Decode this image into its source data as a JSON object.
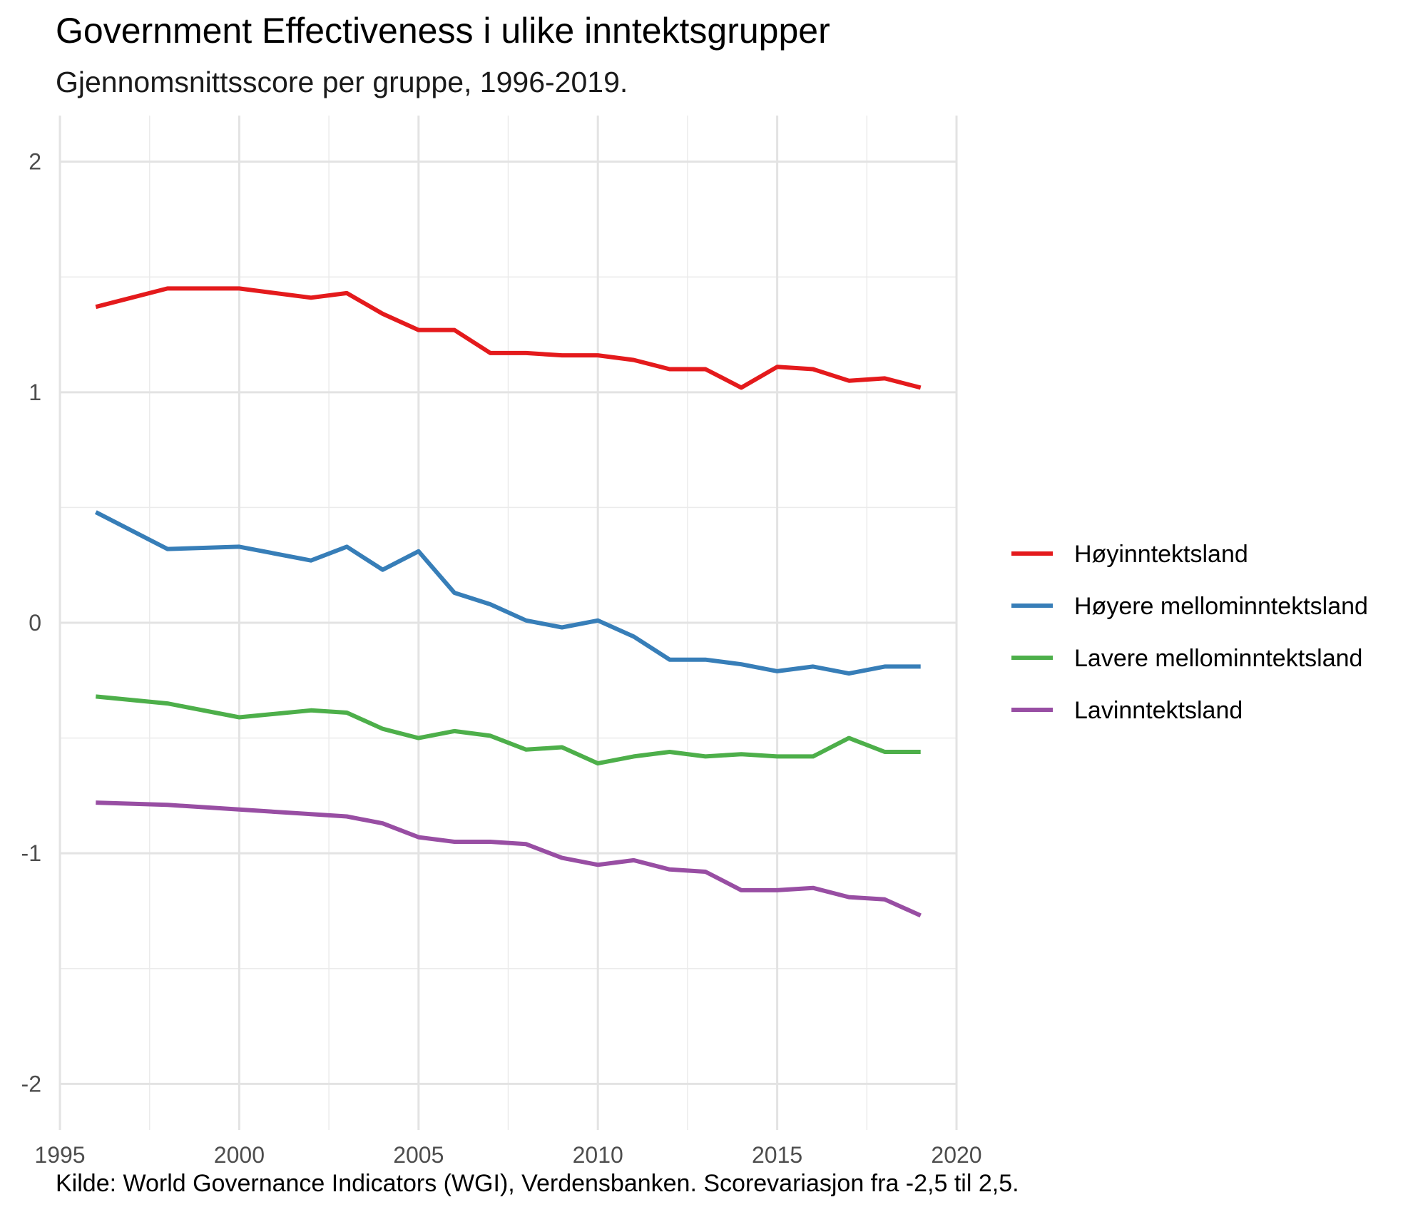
{
  "chart_data": {
    "type": "line",
    "title": "Government Effectiveness i ulike inntektsgrupper",
    "subtitle": "Gjennomsnittsscore per gruppe, 1996-2019.",
    "caption": "Kilde: World Governance Indicators (WGI), Verdensbanken. Scorevariasjon fra -2,5 til 2,5.",
    "xlabel": "",
    "ylabel": "",
    "xlim": [
      1995,
      2020
    ],
    "ylim": [
      -2.2,
      2.2
    ],
    "x_ticks": [
      1995,
      2000,
      2005,
      2010,
      2015,
      2020
    ],
    "y_ticks": [
      -2,
      -1,
      0,
      1,
      2
    ],
    "grid": true,
    "legend_position": "right",
    "x": [
      1996,
      1998,
      2000,
      2002,
      2003,
      2004,
      2005,
      2006,
      2007,
      2008,
      2009,
      2010,
      2011,
      2012,
      2013,
      2014,
      2015,
      2016,
      2017,
      2018,
      2019
    ],
    "series": [
      {
        "name": "Høyinntektsland",
        "color": "#e41a1c",
        "values": [
          1.37,
          1.45,
          1.45,
          1.41,
          1.43,
          1.34,
          1.27,
          1.27,
          1.17,
          1.17,
          1.16,
          1.16,
          1.14,
          1.1,
          1.1,
          1.02,
          1.11,
          1.1,
          1.05,
          1.06,
          1.02
        ]
      },
      {
        "name": "Høyere mellominntektsland",
        "color": "#377eb8",
        "values": [
          0.48,
          0.32,
          0.33,
          0.27,
          0.33,
          0.23,
          0.31,
          0.13,
          0.08,
          0.01,
          -0.02,
          0.01,
          -0.06,
          -0.16,
          -0.16,
          -0.18,
          -0.21,
          -0.19,
          -0.22,
          -0.19,
          -0.19
        ]
      },
      {
        "name": "Lavere mellominntektsland",
        "color": "#4daf4a",
        "values": [
          -0.32,
          -0.35,
          -0.41,
          -0.38,
          -0.39,
          -0.46,
          -0.5,
          -0.47,
          -0.49,
          -0.55,
          -0.54,
          -0.61,
          -0.58,
          -0.56,
          -0.58,
          -0.57,
          -0.58,
          -0.58,
          -0.5,
          -0.56,
          -0.56
        ]
      },
      {
        "name": "Lavinntektsland",
        "color": "#984ea3",
        "values": [
          -0.78,
          -0.79,
          -0.81,
          -0.83,
          -0.84,
          -0.87,
          -0.93,
          -0.95,
          -0.95,
          -0.96,
          -1.02,
          -1.05,
          -1.03,
          -1.07,
          -1.08,
          -1.16,
          -1.16,
          -1.15,
          -1.19,
          -1.2,
          -1.27
        ]
      }
    ]
  }
}
